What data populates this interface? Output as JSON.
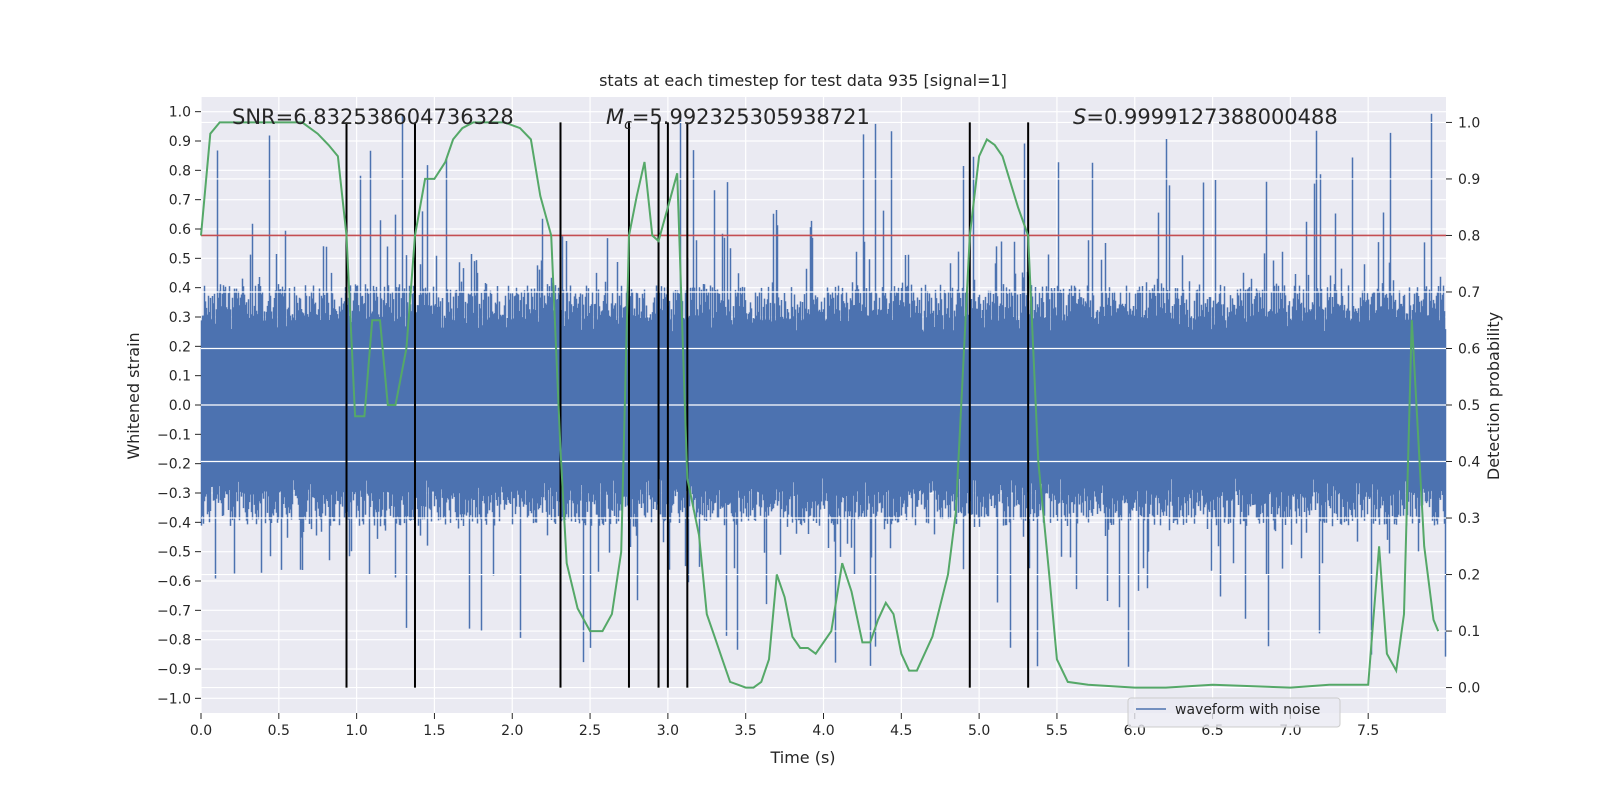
{
  "chart_data": {
    "type": "line",
    "title": "stats at each timestep for test data 935 [signal=1]",
    "xlabel": "Time (s)",
    "ylabel_left": "Whitened strain",
    "ylabel_right": "Detection probability",
    "xlim": [
      0.0,
      8.0
    ],
    "ylim_left": [
      -1.05,
      1.05
    ],
    "ylim_right": [
      -0.045,
      1.045
    ],
    "x_ticks": [
      "0.0",
      "0.5",
      "1.0",
      "1.5",
      "2.0",
      "2.5",
      "3.0",
      "3.5",
      "4.0",
      "4.5",
      "5.0",
      "5.5",
      "6.0",
      "6.5",
      "7.0",
      "7.5"
    ],
    "y_ticks_left": [
      "1.0",
      "0.9",
      "0.8",
      "0.7",
      "0.6",
      "0.5",
      "0.4",
      "0.3",
      "0.2",
      "0.1",
      "0.0",
      "−0.1",
      "−0.2",
      "−0.3",
      "−0.4",
      "−0.5",
      "−0.6",
      "−0.7",
      "−0.8",
      "−0.9",
      "−1.0"
    ],
    "y_ticks_right": [
      "1.0",
      "0.9",
      "0.8",
      "0.7",
      "0.6",
      "0.5",
      "0.4",
      "0.3",
      "0.2",
      "0.1",
      "0.0"
    ],
    "grid": true,
    "annotations": {
      "snr": "SNR=6.832538604736328",
      "mc_symbol": "M",
      "mc_subscript": "c",
      "mc_value": "=5.992325305938721",
      "s_symbol": "S",
      "s_value": "=0.9999127388000488"
    },
    "legend": {
      "position": "lower-right",
      "entries": [
        "waveform with noise"
      ]
    },
    "threshold_probability": 0.8,
    "event_lines_x": [
      0.935,
      1.375,
      2.31,
      2.75,
      2.94,
      3.0,
      3.125,
      4.94,
      5.315
    ],
    "event_line_range_right": [
      0.0,
      1.0
    ],
    "waveform": {
      "name": "waveform with noise",
      "color": "#4c72b0",
      "dense_band": 0.25,
      "typical_peak": 0.55,
      "max_peak": 1.0,
      "min_trough": -0.93
    },
    "probability": {
      "color": "#55a868",
      "x": [
        0.0,
        0.06,
        0.12,
        0.18,
        0.25,
        0.35,
        0.45,
        0.55,
        0.65,
        0.75,
        0.82,
        0.88,
        0.935,
        0.99,
        1.05,
        1.1,
        1.15,
        1.2,
        1.25,
        1.32,
        1.375,
        1.44,
        1.5,
        1.57,
        1.62,
        1.68,
        1.75,
        1.85,
        1.95,
        2.05,
        2.12,
        2.18,
        2.25,
        2.31,
        2.35,
        2.42,
        2.5,
        2.58,
        2.64,
        2.7,
        2.75,
        2.8,
        2.85,
        2.9,
        2.94,
        3.0,
        3.06,
        3.125,
        3.2,
        3.25,
        3.3,
        3.35,
        3.4,
        3.45,
        3.5,
        3.55,
        3.6,
        3.65,
        3.7,
        3.75,
        3.8,
        3.85,
        3.9,
        3.95,
        4.05,
        4.12,
        4.18,
        4.25,
        4.3,
        4.35,
        4.4,
        4.45,
        4.5,
        4.55,
        4.6,
        4.7,
        4.8,
        4.85,
        4.94,
        5.0,
        5.05,
        5.1,
        5.15,
        5.25,
        5.315,
        5.38,
        5.45,
        5.5,
        5.57,
        5.7,
        6.0,
        6.2,
        6.5,
        7.0,
        7.25,
        7.5,
        7.57,
        7.62,
        7.68,
        7.73,
        7.78,
        7.82,
        7.86,
        7.92,
        7.95
      ],
      "y": [
        0.8,
        0.98,
        1.0,
        1.0,
        1.0,
        1.0,
        1.0,
        1.0,
        1.0,
        0.98,
        0.96,
        0.94,
        0.8,
        0.48,
        0.48,
        0.65,
        0.65,
        0.5,
        0.5,
        0.6,
        0.8,
        0.9,
        0.9,
        0.93,
        0.97,
        0.99,
        1.0,
        1.0,
        1.0,
        0.99,
        0.97,
        0.87,
        0.8,
        0.42,
        0.22,
        0.14,
        0.1,
        0.1,
        0.13,
        0.24,
        0.8,
        0.87,
        0.93,
        0.8,
        0.79,
        0.85,
        0.91,
        0.37,
        0.27,
        0.13,
        0.09,
        0.05,
        0.01,
        0.005,
        0.0,
        0.0,
        0.01,
        0.05,
        0.2,
        0.16,
        0.09,
        0.07,
        0.07,
        0.06,
        0.1,
        0.22,
        0.17,
        0.08,
        0.08,
        0.12,
        0.15,
        0.13,
        0.06,
        0.03,
        0.03,
        0.09,
        0.2,
        0.31,
        0.8,
        0.94,
        0.97,
        0.96,
        0.94,
        0.85,
        0.8,
        0.4,
        0.2,
        0.05,
        0.01,
        0.005,
        0.0,
        0.0,
        0.005,
        0.0,
        0.005,
        0.005,
        0.25,
        0.06,
        0.03,
        0.13,
        0.65,
        0.45,
        0.25,
        0.12,
        0.1
      ]
    }
  }
}
